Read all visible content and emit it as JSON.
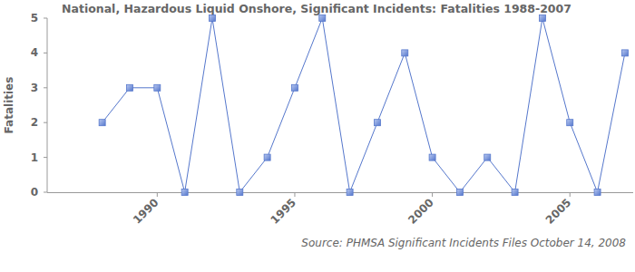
{
  "chart_data": {
    "type": "line",
    "title": "National, Hazardous Liquid Onshore, Significant Incidents: Fatalities 1988-2007",
    "y_label": "Fatalities",
    "annotation": "Source: PHMSA Significant Incidents Files October 14, 2008",
    "x": [
      1988,
      1989,
      1990,
      1991,
      1992,
      1993,
      1994,
      1995,
      1996,
      1997,
      1998,
      1999,
      2000,
      2001,
      2002,
      2003,
      2004,
      2005,
      2006,
      2007
    ],
    "values": [
      2,
      3,
      3,
      0,
      5,
      0,
      1,
      3,
      5,
      0,
      2,
      4,
      1,
      0,
      1,
      0,
      5,
      2,
      0,
      4
    ],
    "color": "#5577cc",
    "marker": "square",
    "xlim": [
      1986,
      2007.3
    ],
    "xticks": [
      1990,
      1995,
      2000,
      2005
    ],
    "ylim": [
      0,
      5
    ],
    "yticks": [
      0,
      1,
      2,
      3,
      4,
      5
    ],
    "grid": false
  }
}
